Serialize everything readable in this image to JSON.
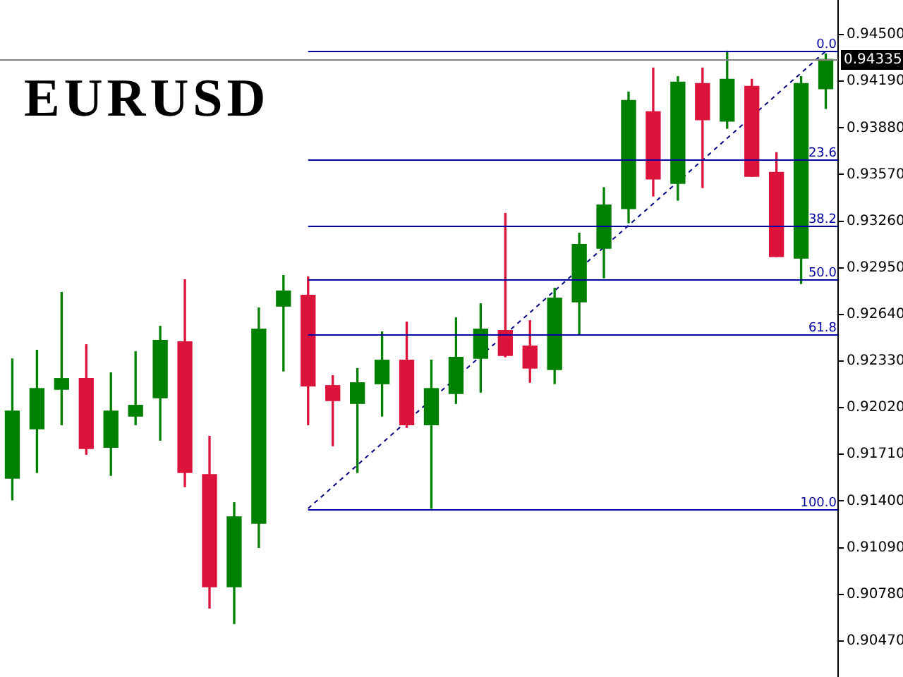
{
  "chart_data": {
    "type": "candlestick",
    "title": "EURUSD",
    "categories": [
      null,
      null,
      null,
      null,
      null,
      null,
      null,
      null,
      null,
      null,
      null,
      null,
      null,
      null,
      null,
      null,
      null,
      null,
      null,
      null,
      null,
      null,
      null,
      null,
      null,
      null,
      null,
      null,
      null,
      null,
      null,
      null,
      null,
      null
    ],
    "ohlc": [
      [
        0.91551,
        0.92345,
        0.91407,
        0.91998
      ],
      [
        0.91879,
        0.92402,
        0.91589,
        0.92148
      ],
      [
        0.92142,
        0.92786,
        0.91907,
        0.92214
      ],
      [
        0.92214,
        0.92439,
        0.9171,
        0.91748
      ],
      [
        0.91757,
        0.92252,
        0.9157,
        0.91998
      ],
      [
        0.91964,
        0.92392,
        0.91907,
        0.92036
      ],
      [
        0.92086,
        0.92561,
        0.91804,
        0.92467
      ],
      [
        0.92458,
        0.92871,
        0.91495,
        0.91589
      ],
      [
        0.91576,
        0.9183,
        0.90688,
        0.90829
      ],
      [
        0.90829,
        0.91389,
        0.90585,
        0.91295
      ],
      [
        0.91251,
        0.92683,
        0.91091,
        0.92542
      ],
      [
        0.92695,
        0.92899,
        0.92264,
        0.92796
      ],
      [
        0.92768,
        0.9289,
        0.91907,
        0.92164
      ],
      [
        0.92167,
        0.92233,
        0.91767,
        0.92067
      ],
      [
        0.92048,
        0.9228,
        0.91589,
        0.92186
      ],
      [
        0.92179,
        0.92524,
        0.91964,
        0.92336
      ],
      [
        0.92336,
        0.92589,
        0.91889,
        0.91907
      ],
      [
        0.91907,
        0.92336,
        0.91351,
        0.92148
      ],
      [
        0.92114,
        0.92617,
        0.92048,
        0.92355
      ],
      [
        0.92348,
        0.92711,
        0.92123,
        0.92542
      ],
      [
        0.92533,
        0.93312,
        0.92358,
        0.92367
      ],
      [
        0.9243,
        0.92599,
        0.92189,
        0.92283
      ],
      [
        0.92273,
        0.92814,
        0.9218,
        0.92749
      ],
      [
        0.92723,
        0.9318,
        0.92508,
        0.93105
      ],
      [
        0.9308,
        0.93483,
        0.92883,
        0.93368
      ],
      [
        0.93343,
        0.94118,
        0.93249,
        0.94062
      ],
      [
        0.93987,
        0.94278,
        0.93427,
        0.9354
      ],
      [
        0.93511,
        0.94221,
        0.93399,
        0.94184
      ],
      [
        0.94175,
        0.94278,
        0.93483,
        0.93934
      ],
      [
        0.93924,
        0.9439,
        0.93877,
        0.94203
      ],
      [
        0.94156,
        0.94203,
        0.93558,
        0.93558
      ],
      [
        0.93584,
        0.93715,
        0.93024,
        0.93024
      ],
      [
        0.93014,
        0.94221,
        0.92845,
        0.94175
      ],
      [
        0.9414,
        0.94372,
        0.94009,
        0.94335
      ]
    ],
    "colors": [
      "#008000",
      "#008000",
      "#008000",
      "#dc143c",
      "#008000",
      "#008000",
      "#008000",
      "#dc143c",
      "#dc143c",
      "#008000",
      "#008000",
      "#008000",
      "#dc143c",
      "#dc143c",
      "#008000",
      "#008000",
      "#dc143c",
      "#008000",
      "#008000",
      "#008000",
      "#dc143c",
      "#dc143c",
      "#008000",
      "#008000",
      "#008000",
      "#008000",
      "#dc143c",
      "#008000",
      "#dc143c",
      "#008000",
      "#dc143c",
      "#dc143c",
      "#008000",
      "#008000"
    ],
    "series": [
      {
        "type": "line",
        "color": "#000080",
        "line_style": "dashed",
        "values": [
          null,
          null,
          null,
          null,
          null,
          null,
          null,
          null,
          null,
          null,
          null,
          null,
          0.9135,
          null,
          null,
          null,
          null,
          null,
          null,
          null,
          null,
          null,
          null,
          null,
          null,
          null,
          null,
          null,
          null,
          null,
          null,
          null,
          null,
          0.9439
        ]
      }
    ],
    "ref_lines": [
      {
        "axis": "y",
        "value": 0.9439,
        "color": "#0000a0"
      },
      {
        "axis": "y",
        "value": 0.9367,
        "color": "#0000a0"
      },
      {
        "axis": "y",
        "value": 0.9323,
        "color": "#0000a0"
      },
      {
        "axis": "y",
        "value": 0.9287,
        "color": "#0000a0"
      },
      {
        "axis": "y",
        "value": 0.9251,
        "color": "#0000a0"
      },
      {
        "axis": "y",
        "value": 0.9135,
        "color": "#0000a0"
      },
      {
        "axis": "y",
        "value": 0.94335,
        "label": "0.94335",
        "color": "#808080"
      }
    ],
    "annotations": [
      {
        "text": "0.0",
        "y": 0.9439
      },
      {
        "text": "23.6",
        "y": 0.9367
      },
      {
        "text": "38.2",
        "y": 0.9323
      },
      {
        "text": "50.0",
        "y": 0.9287
      },
      {
        "text": "61.8",
        "y": 0.9251
      },
      {
        "text": "100.0",
        "y": 0.9135
      }
    ],
    "ylim": [
      0.9023,
      0.9473
    ],
    "yticks": [
      {
        "value": 0.945,
        "label": "0.94500"
      },
      {
        "value": 0.9419,
        "label": "0.94190"
      },
      {
        "value": 0.9388,
        "label": "0.93880"
      },
      {
        "value": 0.9357,
        "label": "0.93570"
      },
      {
        "value": 0.9326,
        "label": "0.93260"
      },
      {
        "value": 0.9295,
        "label": "0.92950"
      },
      {
        "value": 0.9264,
        "label": "0.92640"
      },
      {
        "value": 0.9233,
        "label": "0.92330"
      },
      {
        "value": 0.9202,
        "label": "0.92020"
      },
      {
        "value": 0.9171,
        "label": "0.91710"
      },
      {
        "value": 0.914,
        "label": "0.91400"
      },
      {
        "value": 0.9109,
        "label": "0.91090"
      },
      {
        "value": 0.9078,
        "label": "0.90780"
      },
      {
        "value": 0.9047,
        "label": "0.90470"
      }
    ],
    "tick_labels": "y"
  }
}
